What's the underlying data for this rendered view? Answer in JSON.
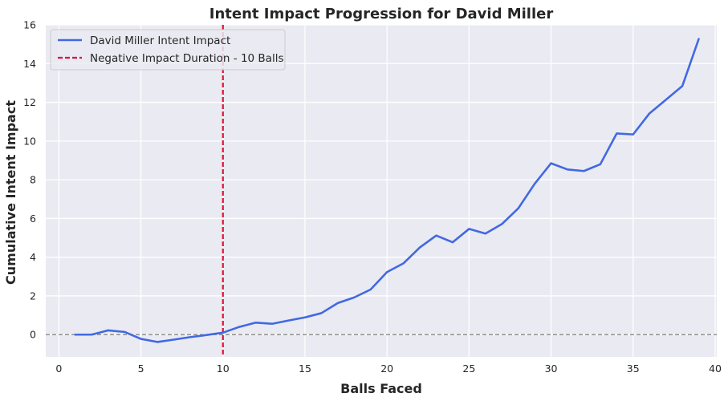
{
  "chart_data": {
    "type": "line",
    "title": "Intent Impact Progression for David Miller",
    "xlabel": "Balls Faced",
    "ylabel": "Cumulative Intent Impact",
    "xlim": [
      -0.8,
      40.1
    ],
    "ylim": [
      -1.15,
      16
    ],
    "xticks": [
      0,
      5,
      10,
      15,
      20,
      25,
      30,
      35,
      40
    ],
    "yticks": [
      0,
      2,
      4,
      6,
      8,
      10,
      12,
      14,
      16
    ],
    "grid": true,
    "legend_position": "top-left",
    "series": [
      {
        "name": "David Miller Intent Impact",
        "color": "#4169e1",
        "x": [
          1,
          2,
          3,
          4,
          5,
          6,
          7,
          8,
          9,
          10,
          11,
          12,
          13,
          14,
          15,
          16,
          17,
          18,
          19,
          20,
          21,
          22,
          23,
          24,
          25,
          26,
          27,
          28,
          29,
          30,
          31,
          32,
          33,
          34,
          35,
          36,
          37,
          38,
          39
        ],
        "y": [
          0.0,
          0.0,
          0.22,
          0.14,
          -0.22,
          -0.38,
          -0.26,
          -0.13,
          -0.02,
          0.1,
          0.4,
          0.62,
          0.56,
          0.73,
          0.89,
          1.11,
          1.63,
          1.92,
          2.33,
          3.23,
          3.68,
          4.5,
          5.12,
          4.77,
          5.46,
          5.22,
          5.71,
          6.52,
          7.79,
          8.85,
          8.53,
          8.45,
          8.8,
          10.39,
          10.34,
          11.43,
          12.13,
          12.84,
          15.27
        ]
      }
    ],
    "annotations": [
      {
        "type": "vline",
        "x": 10,
        "label": "Negative Impact Duration - 10 Balls",
        "color": "#dc143c",
        "style": "dashed"
      },
      {
        "type": "hline",
        "y": 0,
        "color": "#808080",
        "style": "dashed"
      }
    ]
  }
}
